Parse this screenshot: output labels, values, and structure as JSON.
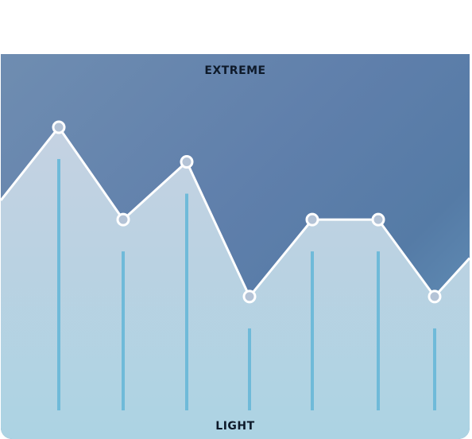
{
  "scale": {
    "top_label": "EXTREME",
    "bottom_label": "LIGHT"
  },
  "colors": {
    "line": "#ffffff",
    "fill_top": "#c5d2e2",
    "fill_bottom": "#acd3e3",
    "bar": "#6fbad9",
    "marker_fill": "#b4c3d6"
  },
  "chart_data": {
    "type": "line",
    "x": [
      1,
      2,
      3,
      4,
      5,
      6,
      7
    ],
    "values": [
      0.81,
      0.57,
      0.72,
      0.37,
      0.57,
      0.57,
      0.37
    ],
    "bar_values": [
      0.81,
      0.57,
      0.72,
      0.37,
      0.57,
      0.57,
      0.37
    ],
    "ylim": [
      0,
      1
    ],
    "grid": false,
    "legend": "none"
  }
}
